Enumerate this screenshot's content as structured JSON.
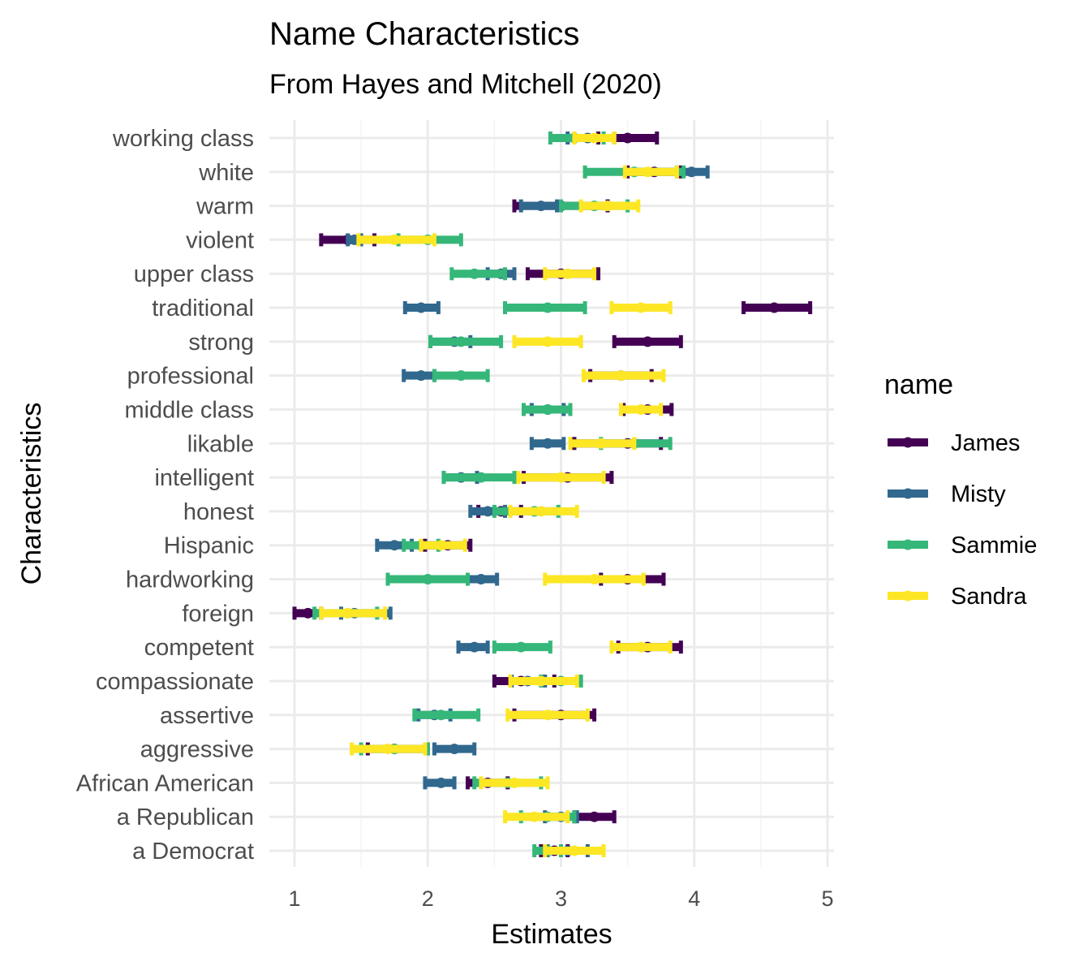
{
  "chart_data": {
    "type": "errorbar",
    "title": "Name Characteristics",
    "subtitle": "From Hayes and Mitchell (2020)",
    "xlabel": "Estimates",
    "ylabel": "Characteristics",
    "xlim": [
      0.8,
      5.05
    ],
    "x_ticks": [
      "1",
      "2",
      "3",
      "4",
      "5"
    ],
    "grid": true,
    "legend": {
      "title": "name",
      "position": "right"
    },
    "categories": [
      "working class",
      "white",
      "warm",
      "violent",
      "upper class",
      "traditional",
      "strong",
      "professional",
      "middle class",
      "likable",
      "intelligent",
      "honest",
      "Hispanic",
      "hardworking",
      "foreign",
      "competent",
      "compassionate",
      "assertive",
      "aggressive",
      "African American",
      "a Republican",
      "a Democrat"
    ],
    "series": [
      {
        "name": "James",
        "color": "#440154",
        "estimates": [
          3.5,
          3.7,
          3.0,
          1.4,
          3.0,
          4.6,
          3.65,
          3.45,
          3.65,
          3.5,
          3.05,
          2.55,
          2.15,
          3.5,
          1.1,
          3.65,
          2.7,
          3.0,
          1.75,
          2.45,
          3.25,
          2.95
        ],
        "lower": [
          3.28,
          3.5,
          2.65,
          1.2,
          2.75,
          4.37,
          3.4,
          3.22,
          3.47,
          3.1,
          2.72,
          2.38,
          1.98,
          3.3,
          1.0,
          3.43,
          2.5,
          2.65,
          1.55,
          2.3,
          3.1,
          2.85
        ],
        "upper": [
          3.72,
          3.9,
          3.35,
          1.6,
          3.28,
          4.87,
          3.9,
          3.68,
          3.83,
          3.75,
          3.38,
          2.7,
          2.32,
          3.77,
          1.2,
          3.9,
          2.95,
          3.25,
          2.0,
          2.6,
          3.4,
          3.05
        ]
      },
      {
        "name": "Misty",
        "color": "#31688e",
        "estimates": [
          3.2,
          3.98,
          2.85,
          1.45,
          2.55,
          1.95,
          2.2,
          1.95,
          2.9,
          2.9,
          2.25,
          2.45,
          1.75,
          2.4,
          1.45,
          2.35,
          2.75,
          2.05,
          2.2,
          2.1,
          3.0,
          3.05
        ],
        "lower": [
          3.05,
          3.87,
          2.7,
          1.4,
          2.45,
          1.83,
          2.02,
          1.82,
          2.78,
          2.78,
          2.12,
          2.32,
          1.62,
          2.3,
          1.35,
          2.23,
          2.63,
          1.93,
          2.05,
          1.98,
          2.88,
          2.9
        ],
        "upper": [
          3.4,
          4.1,
          2.97,
          1.5,
          2.65,
          2.08,
          2.32,
          2.05,
          3.02,
          3.02,
          2.37,
          2.58,
          1.88,
          2.52,
          1.72,
          2.45,
          2.88,
          2.17,
          2.35,
          2.2,
          3.12,
          3.2
        ]
      },
      {
        "name": "Sammie",
        "color": "#35b779",
        "estimates": [
          3.1,
          3.55,
          3.25,
          2.0,
          2.35,
          2.9,
          2.25,
          2.25,
          2.9,
          3.55,
          2.4,
          2.8,
          1.95,
          2.0,
          1.4,
          2.7,
          3.0,
          2.1,
          1.75,
          2.6,
          2.9,
          2.9
        ],
        "lower": [
          2.92,
          3.18,
          3.0,
          1.78,
          2.18,
          2.58,
          2.02,
          2.05,
          2.72,
          3.3,
          2.12,
          2.5,
          1.82,
          1.7,
          1.15,
          2.5,
          2.85,
          1.9,
          1.5,
          2.35,
          2.7,
          2.8
        ],
        "upper": [
          3.32,
          3.92,
          3.5,
          2.25,
          2.58,
          3.18,
          2.55,
          2.45,
          3.07,
          3.82,
          2.65,
          2.98,
          2.08,
          2.3,
          1.62,
          2.92,
          3.15,
          2.38,
          2.0,
          2.85,
          3.1,
          3.0
        ]
      },
      {
        "name": "Sandra",
        "color": "#fde725",
        "estimates": [
          3.25,
          3.65,
          3.35,
          1.75,
          3.05,
          3.6,
          2.9,
          3.45,
          3.6,
          3.3,
          3.0,
          2.85,
          2.1,
          3.25,
          1.4,
          3.6,
          2.85,
          2.9,
          1.7,
          2.65,
          2.8,
          3.1
        ],
        "lower": [
          3.1,
          3.48,
          3.15,
          1.48,
          2.88,
          3.38,
          2.65,
          3.17,
          3.45,
          3.07,
          2.68,
          2.62,
          1.95,
          2.88,
          1.2,
          3.38,
          2.62,
          2.6,
          1.43,
          2.4,
          2.58,
          2.88
        ],
        "upper": [
          3.4,
          3.87,
          3.58,
          2.05,
          3.25,
          3.82,
          3.15,
          3.77,
          3.75,
          3.55,
          3.32,
          3.12,
          2.28,
          3.62,
          1.68,
          3.82,
          3.12,
          3.2,
          1.98,
          2.9,
          3.05,
          3.32
        ]
      }
    ]
  }
}
